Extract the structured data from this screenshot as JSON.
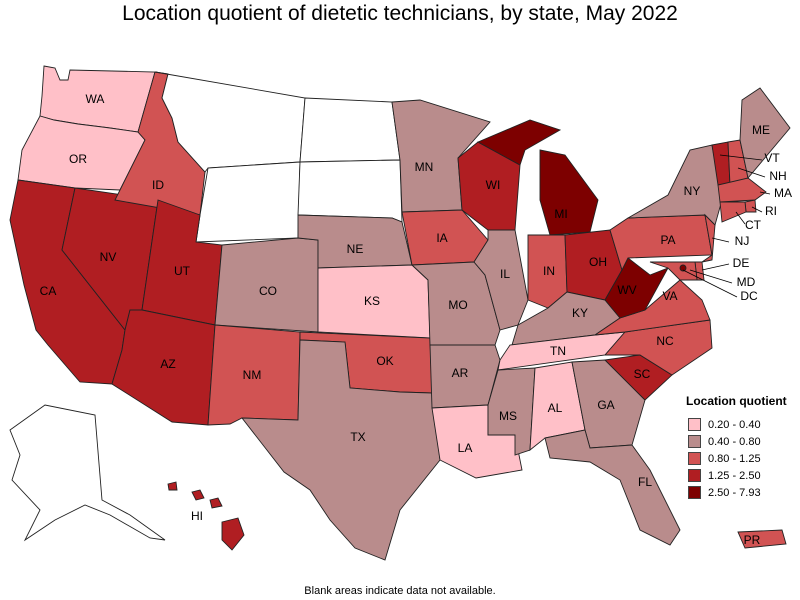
{
  "title": "Location quotient of dietetic technicians, by state, May 2022",
  "footnote": "Blank areas indicate data not available.",
  "legend": {
    "title": "Location quotient",
    "items": [
      {
        "label": "0.20 - 0.40",
        "color": "#ffc0c8"
      },
      {
        "label": "0.40 - 0.80",
        "color": "#b98c8c"
      },
      {
        "label": "0.80 - 1.25",
        "color": "#d15353"
      },
      {
        "label": "1.25 - 2.50",
        "color": "#b01e22"
      },
      {
        "label": "2.50 - 7.93",
        "color": "#7d0000"
      }
    ]
  },
  "colors": {
    "no_data": "#ffffff",
    "c1": "#ffc0c8",
    "c2": "#b98c8c",
    "c3": "#d15353",
    "c4": "#b01e22",
    "c5": "#7d0000"
  },
  "states": {
    "WA": {
      "label": "WA",
      "class": "0.20 - 0.40"
    },
    "OR": {
      "label": "OR",
      "class": "0.20 - 0.40"
    },
    "CA": {
      "label": "CA",
      "class": "1.25 - 2.50"
    },
    "NV": {
      "label": "NV",
      "class": "1.25 - 2.50"
    },
    "ID": {
      "label": "ID",
      "class": "0.80 - 1.25"
    },
    "UT": {
      "label": "UT",
      "class": "1.25 - 2.50"
    },
    "AZ": {
      "label": "AZ",
      "class": "1.25 - 2.50"
    },
    "CO": {
      "label": "CO",
      "class": "0.40 - 0.80"
    },
    "NM": {
      "label": "NM",
      "class": "0.80 - 1.25"
    },
    "NE": {
      "label": "NE",
      "class": "0.40 - 0.80"
    },
    "KS": {
      "label": "KS",
      "class": "0.20 - 0.40"
    },
    "OK": {
      "label": "OK",
      "class": "0.80 - 1.25"
    },
    "TX": {
      "label": "TX",
      "class": "0.40 - 0.80"
    },
    "MN": {
      "label": "MN",
      "class": "0.40 - 0.80"
    },
    "IA": {
      "label": "IA",
      "class": "0.80 - 1.25"
    },
    "MO": {
      "label": "MO",
      "class": "0.40 - 0.80"
    },
    "AR": {
      "label": "AR",
      "class": "0.40 - 0.80"
    },
    "LA": {
      "label": "LA",
      "class": "0.20 - 0.40"
    },
    "WI": {
      "label": "WI",
      "class": "1.25 - 2.50"
    },
    "IL": {
      "label": "IL",
      "class": "0.40 - 0.80"
    },
    "MI": {
      "label": "MI",
      "class": "2.50 - 7.93"
    },
    "IN": {
      "label": "IN",
      "class": "0.80 - 1.25"
    },
    "OH": {
      "label": "OH",
      "class": "1.25 - 2.50"
    },
    "KY": {
      "label": "KY",
      "class": "0.40 - 0.80"
    },
    "TN": {
      "label": "TN",
      "class": "0.20 - 0.40"
    },
    "MS": {
      "label": "MS",
      "class": "0.40 - 0.80"
    },
    "AL": {
      "label": "AL",
      "class": "0.20 - 0.40"
    },
    "GA": {
      "label": "GA",
      "class": "0.40 - 0.80"
    },
    "FL": {
      "label": "FL",
      "class": "0.40 - 0.80"
    },
    "SC": {
      "label": "SC",
      "class": "1.25 - 2.50"
    },
    "NC": {
      "label": "NC",
      "class": "0.80 - 1.25"
    },
    "VA": {
      "label": "VA",
      "class": "0.80 - 1.25"
    },
    "WV": {
      "label": "WV",
      "class": "2.50 - 7.93"
    },
    "PA": {
      "label": "PA",
      "class": "0.80 - 1.25"
    },
    "NY": {
      "label": "NY",
      "class": "0.40 - 0.80"
    },
    "ME": {
      "label": "ME",
      "class": "0.40 - 0.80"
    },
    "VT": {
      "label": "VT",
      "class": "1.25 - 2.50"
    },
    "NH": {
      "label": "NH",
      "class": "0.80 - 1.25"
    },
    "MA": {
      "label": "MA",
      "class": "0.80 - 1.25"
    },
    "RI": {
      "label": "RI",
      "class": "0.80 - 1.25"
    },
    "CT": {
      "label": "CT",
      "class": "0.80 - 1.25"
    },
    "NJ": {
      "label": "NJ",
      "class": "0.80 - 1.25"
    },
    "DE": {
      "label": "DE",
      "class": "0.80 - 1.25"
    },
    "MD": {
      "label": "MD",
      "class": "0.80 - 1.25"
    },
    "DC": {
      "label": "DC",
      "class": "2.50 - 7.93"
    },
    "HI": {
      "label": "HI",
      "class": "1.25 - 2.50"
    },
    "PR": {
      "label": "PR",
      "class": "0.80 - 1.25"
    },
    "MT": {
      "label": "",
      "class": "none"
    },
    "WY": {
      "label": "",
      "class": "none"
    },
    "ND": {
      "label": "",
      "class": "none"
    },
    "SD": {
      "label": "",
      "class": "none"
    },
    "AK": {
      "label": "",
      "class": "none"
    }
  }
}
